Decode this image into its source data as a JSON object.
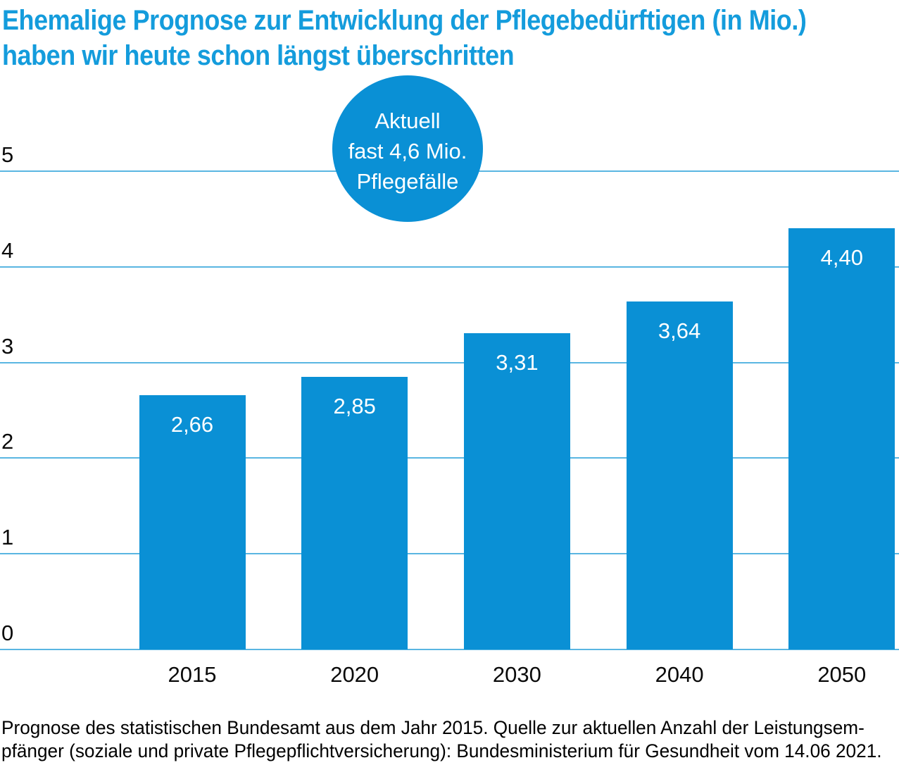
{
  "title": {
    "lines": [
      "Ehemalige Prognose zur Entwicklung der Pflegebedürftigen (in Mio.)",
      "haben wir heute schon längst überschritten"
    ]
  },
  "callout": {
    "lines": [
      "Aktuell",
      "fast 4,6 Mio.",
      "Pflegefälle"
    ]
  },
  "chart_data": {
    "type": "bar",
    "categories": [
      "2015",
      "2020",
      "2030",
      "2040",
      "2050"
    ],
    "values": [
      2.66,
      2.85,
      3.31,
      3.64,
      4.4
    ],
    "value_labels": [
      "2,66",
      "2,85",
      "3,31",
      "3,64",
      "4,40"
    ],
    "title": "Ehemalige Prognose zur Entwicklung der Pflegebedürftigen (in Mio.) haben wir heute schon längst überschritten",
    "xlabel": "",
    "ylabel": "",
    "ylim": [
      0,
      5
    ],
    "yticks": [
      0,
      1,
      2,
      3,
      4,
      5
    ],
    "grid": true,
    "legend": false,
    "annotation": "Aktuell fast 4,6 Mio. Pflegefälle"
  },
  "source": {
    "lines": [
      "Prognose des statistischen Bundesamt aus dem Jahr 2015. Quelle zur aktuellen Anzahl der Leistungsem-",
      "pfänger (soziale und private Pflegepflichtversicherung): Bundesministerium für Gesundheit vom 14.06 2021."
    ]
  },
  "colors": {
    "bar": "#0a90d5",
    "bubble": "#0a90d5",
    "title_text": "#149cdc",
    "gridline": "#5ab6e2",
    "axis_text": "#0a0a0a",
    "value_text": "#ffffff"
  }
}
